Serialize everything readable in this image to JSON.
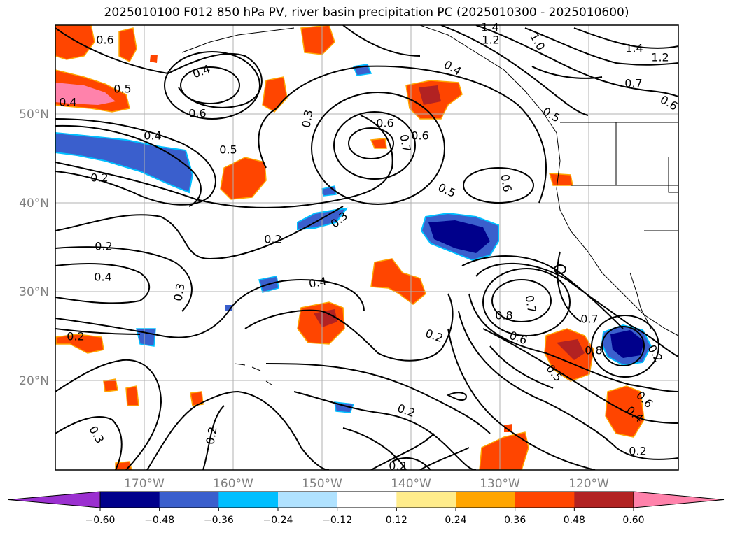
{
  "figure": {
    "title": "2025010100 F012 850 hPa PV, river basin precipitation PC (2025010300 - 2025010600)"
  },
  "axes": {
    "lat_labels": [
      "50°N",
      "40°N",
      "30°N",
      "20°N"
    ],
    "lon_labels": [
      "170°W",
      "160°W",
      "150°W",
      "140°W",
      "130°W",
      "120°W"
    ]
  },
  "colorbar": {
    "tick_labels": [
      "−0.60",
      "−0.48",
      "−0.36",
      "−0.24",
      "−0.12",
      "0.12",
      "0.24",
      "0.36",
      "0.48",
      "0.60"
    ],
    "colors": [
      "#9b30d0",
      "#00008b",
      "#3a5fcd",
      "#00bfff",
      "#b0e2ff",
      "#ffffff",
      "#ffec8b",
      "#ffa500",
      "#ff4500",
      "#b22222",
      "#ff82ab"
    ]
  },
  "contour_labels": [
    {
      "text": "0.6"
    },
    {
      "text": "0.6"
    },
    {
      "text": "0.5"
    },
    {
      "text": "0.4"
    },
    {
      "text": "0.4"
    },
    {
      "text": "0.6"
    },
    {
      "text": "0.4"
    },
    {
      "text": "0.2"
    },
    {
      "text": "0.5"
    },
    {
      "text": "0.3"
    },
    {
      "text": "0.6"
    },
    {
      "text": "0.7"
    },
    {
      "text": "0.5"
    },
    {
      "text": "0.6"
    },
    {
      "text": "0.2"
    },
    {
      "text": "0.3"
    },
    {
      "text": "0.2"
    },
    {
      "text": "0.4"
    },
    {
      "text": "0.3"
    },
    {
      "text": "0.4"
    },
    {
      "text": "0.2"
    },
    {
      "text": "0.8"
    },
    {
      "text": "0.7"
    },
    {
      "text": "0.6"
    },
    {
      "text": "0.7"
    },
    {
      "text": "0.8"
    },
    {
      "text": "0.5"
    },
    {
      "text": "0.2"
    },
    {
      "text": "0.2"
    },
    {
      "text": "0.3"
    },
    {
      "text": "0.2"
    },
    {
      "text": "0.2"
    },
    {
      "text": "0.6"
    },
    {
      "text": "0.4"
    },
    {
      "text": "0.2"
    },
    {
      "text": "1.4"
    },
    {
      "text": "1.2"
    },
    {
      "text": "1.0"
    },
    {
      "text": "1.4"
    },
    {
      "text": "1.2"
    },
    {
      "text": "0.4"
    },
    {
      "text": "0.7"
    },
    {
      "text": "0.6"
    },
    {
      "text": "0.5"
    },
    {
      "text": "0.2"
    }
  ]
}
